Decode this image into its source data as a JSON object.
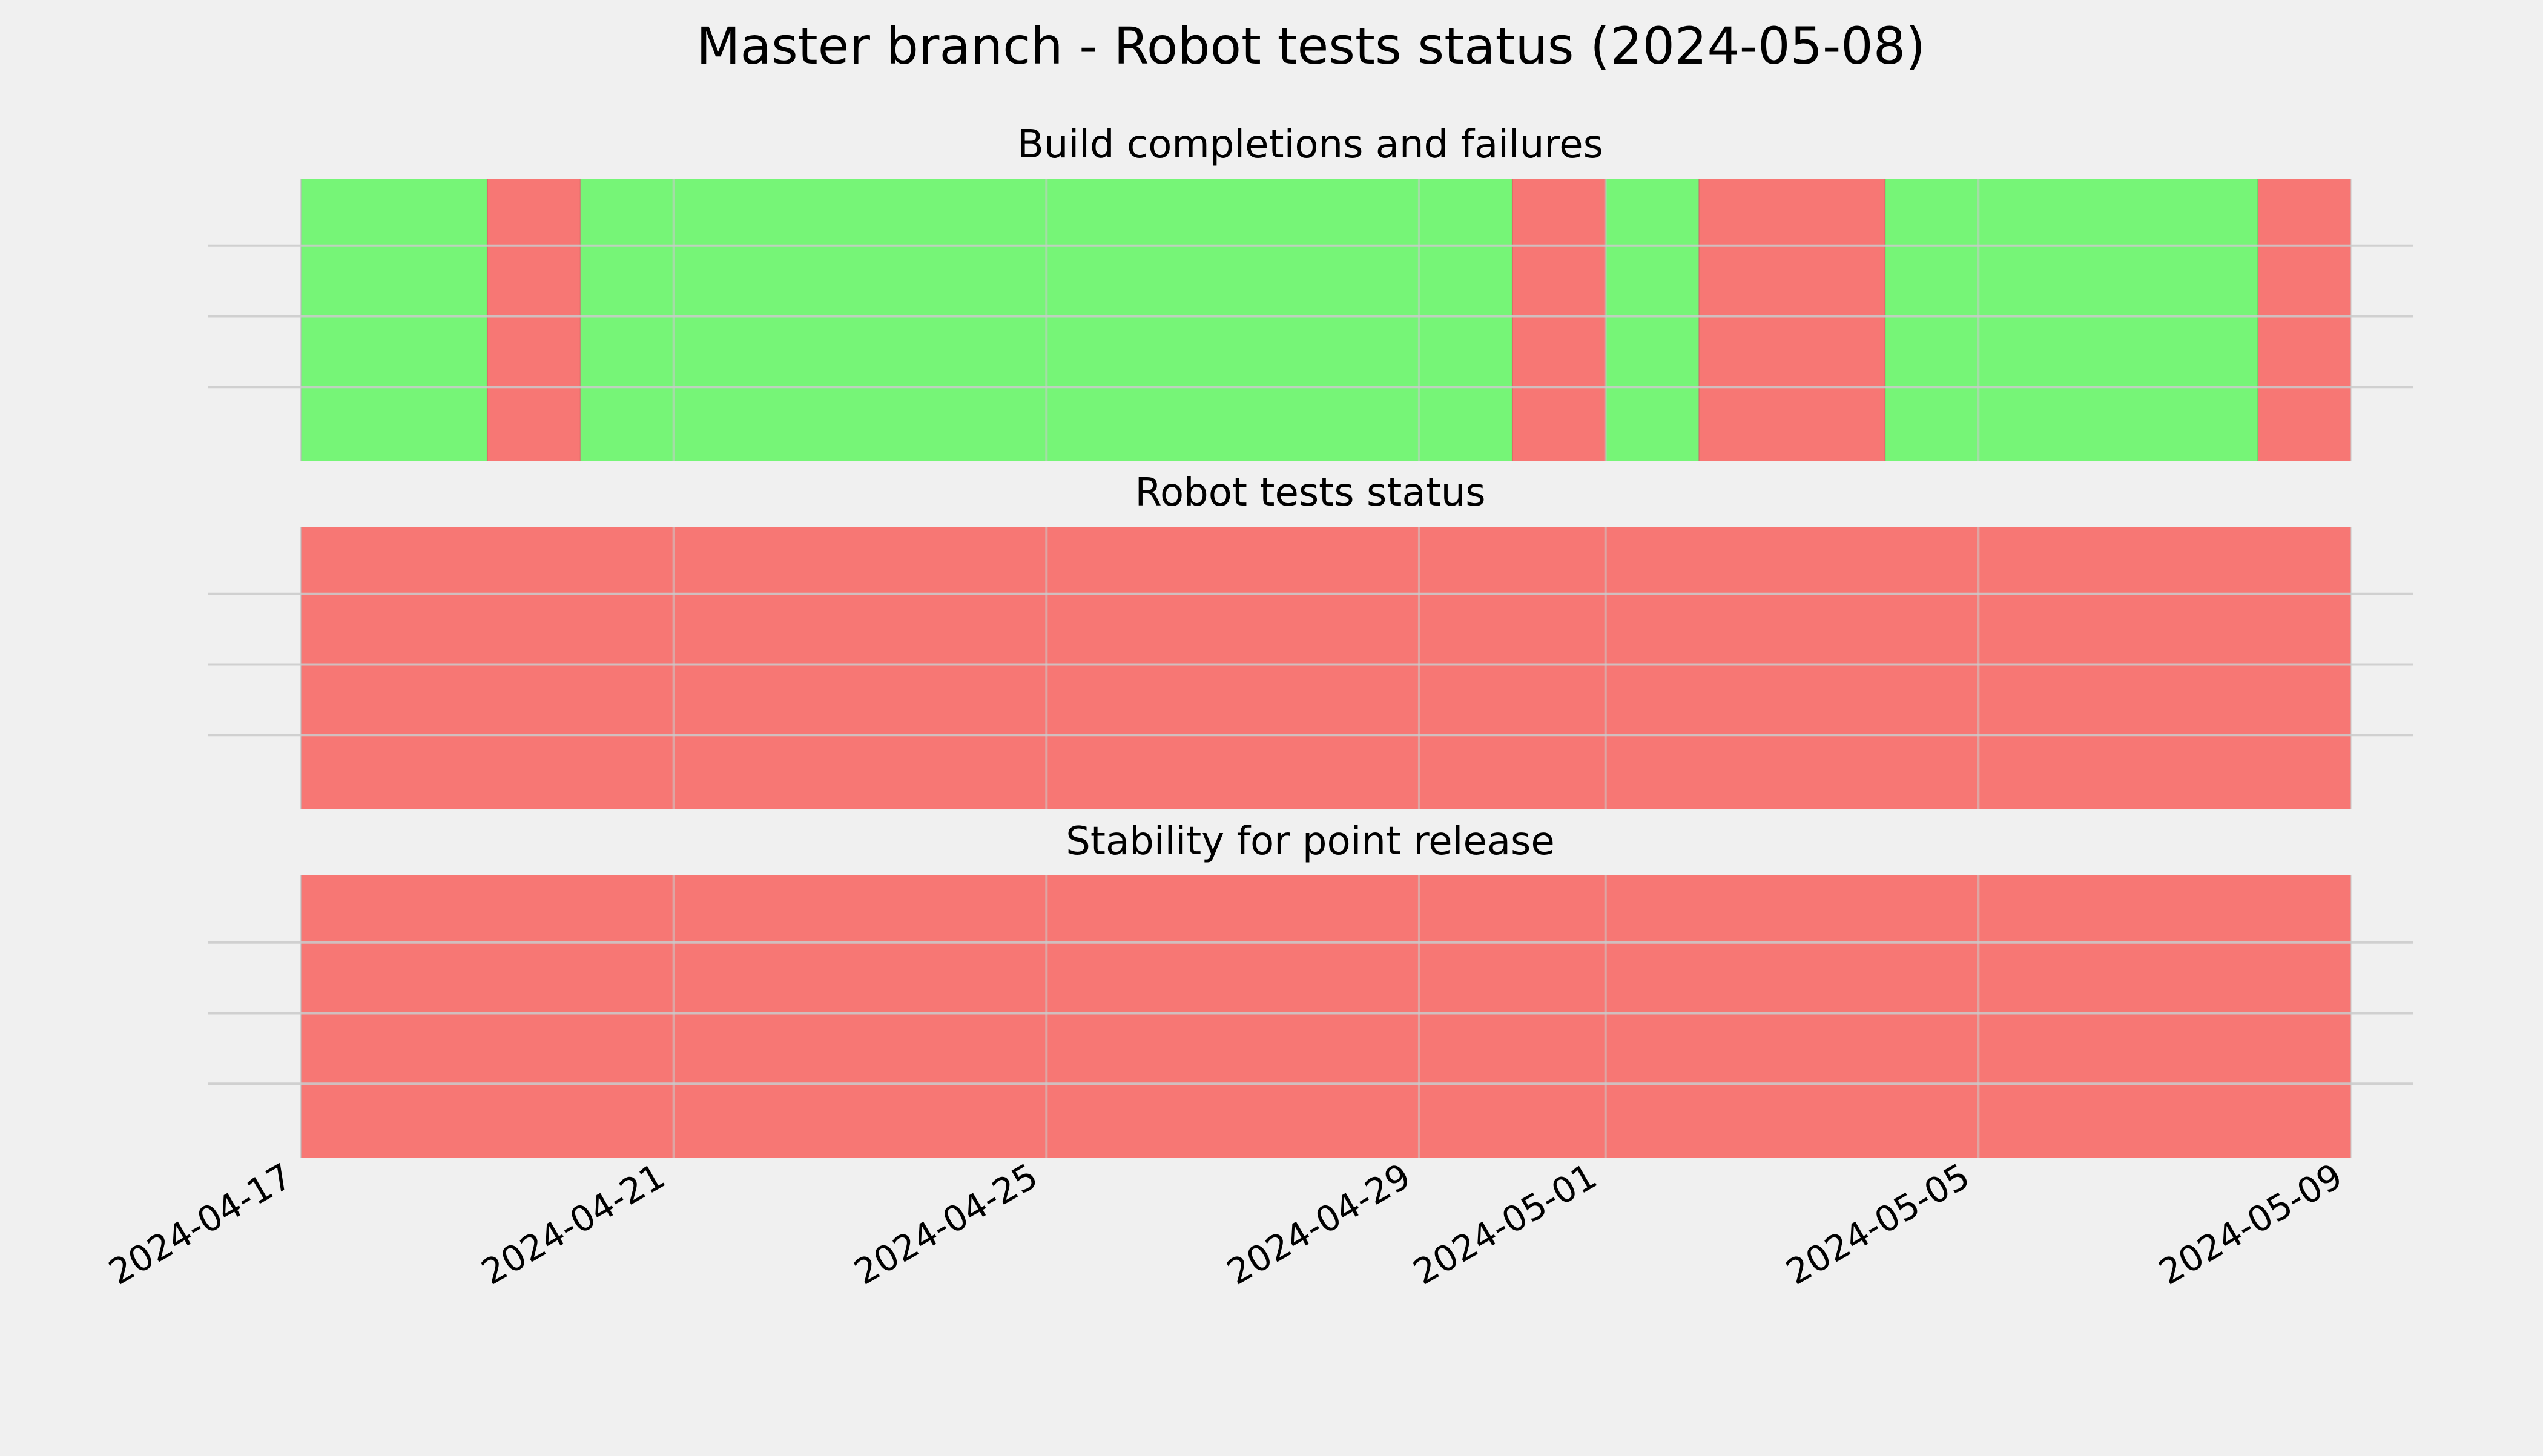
{
  "chart_data": {
    "type": "timeline",
    "title": "Master branch - Robot tests status (2024-05-08)",
    "x_axis": {
      "tick_labels": [
        "2024-04-17",
        "2024-04-21",
        "2024-04-25",
        "2024-04-29",
        "2024-05-01",
        "2024-05-05",
        "2024-05-09"
      ],
      "range": [
        "2024-04-17",
        "2024-05-09"
      ]
    },
    "colors": {
      "pass": "#76f577",
      "fail": "#f77774",
      "background": "#f0f0f0",
      "grid": "#cbcbcb"
    },
    "panels": [
      {
        "title": "Build completions and failures",
        "segments": [
          {
            "start": "2024-04-17",
            "end": "2024-04-19",
            "status": "pass"
          },
          {
            "start": "2024-04-19",
            "end": "2024-04-20",
            "status": "fail"
          },
          {
            "start": "2024-04-20",
            "end": "2024-04-30",
            "status": "pass"
          },
          {
            "start": "2024-04-30",
            "end": "2024-05-01",
            "status": "fail"
          },
          {
            "start": "2024-05-01",
            "end": "2024-05-02",
            "status": "pass"
          },
          {
            "start": "2024-05-02",
            "end": "2024-05-04",
            "status": "fail"
          },
          {
            "start": "2024-05-04",
            "end": "2024-05-08",
            "status": "pass"
          },
          {
            "start": "2024-05-08",
            "end": "2024-05-09",
            "status": "fail"
          }
        ]
      },
      {
        "title": "Robot tests status",
        "segments": [
          {
            "start": "2024-04-17",
            "end": "2024-05-09",
            "status": "fail"
          }
        ]
      },
      {
        "title": "Stability for point release",
        "segments": [
          {
            "start": "2024-04-17",
            "end": "2024-05-09",
            "status": "fail"
          }
        ]
      }
    ]
  }
}
